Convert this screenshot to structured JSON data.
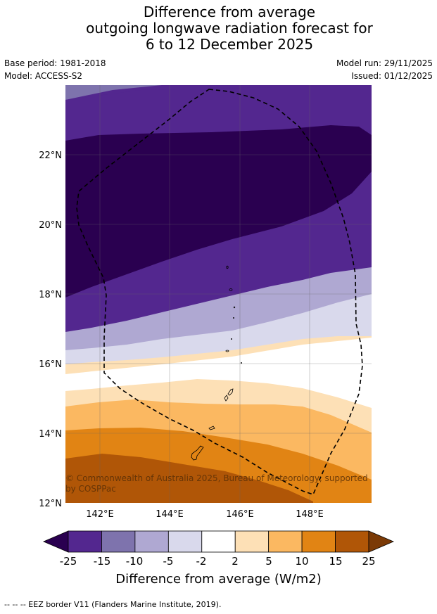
{
  "title_lines": [
    "Difference from average",
    "outgoing longwave radiation forecast for",
    "6 to 12 December 2025"
  ],
  "meta": {
    "base_period": "Base period: 1981-2018",
    "model": "Model: ACCESS-S2",
    "model_run": "Model run: 29/11/2025",
    "issued": "Issued: 01/12/2025"
  },
  "map": {
    "lat_labels": [
      "22°N",
      "20°N",
      "18°N",
      "16°N",
      "14°N",
      "12°N"
    ],
    "lon_labels": [
      "142°E",
      "144°E",
      "146°E",
      "148°E"
    ],
    "copyright_line1": "© Commonwealth of Australia 2025, Bureau of Meteorology, supported",
    "copyright_line2": "by COSPPac"
  },
  "colorbar": {
    "ticks": [
      "-25",
      "-15",
      "-10",
      "-5",
      "-2",
      "2",
      "5",
      "10",
      "15",
      "25"
    ],
    "colors": [
      "#2a0050",
      "#53278f",
      "#7e73ad",
      "#afa8d2",
      "#d9d9ec",
      "#ffffff",
      "#fde0b6",
      "#fbb861",
      "#e18414",
      "#b05607",
      "#7b3a06"
    ],
    "label": "Difference from average (W/m2)"
  },
  "footer": "--  --  -- EEZ border V11 (Flanders Marine Institute, 2019)."
}
